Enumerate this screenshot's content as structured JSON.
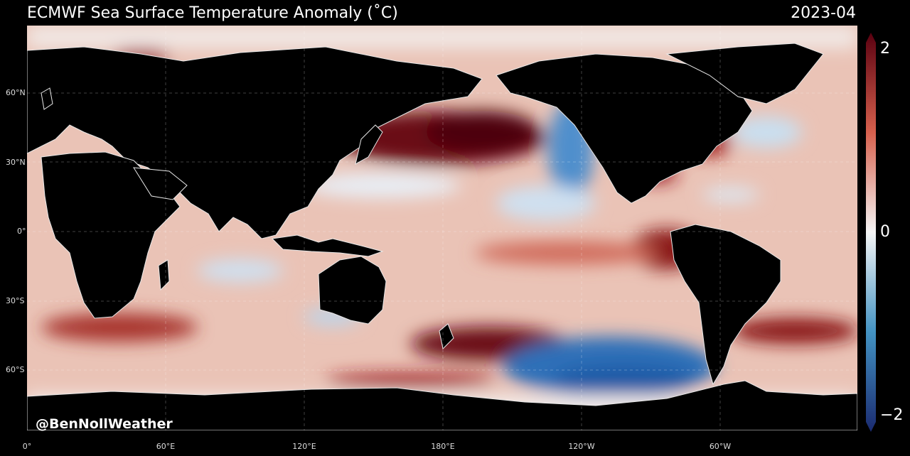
{
  "header": {
    "title": "ECMWF Sea Surface Temperature Anomaly (˚C)",
    "date": "2023-04"
  },
  "credit": "@BenNollWeather",
  "lat_labels": [
    "60°N",
    "30°N",
    "0°",
    "30°S",
    "60°S"
  ],
  "lon_labels": [
    "0°",
    "60°E",
    "120°E",
    "180°E",
    "120°W",
    "60°W"
  ],
  "colorbar": {
    "max_label": "2",
    "mid_label": "0",
    "min_label": "−2",
    "colors": {
      "high": "#5a0010",
      "warm": "#d6604d",
      "neutral": "#f5f5f5",
      "cool": "#4393c3",
      "low": "#1a2a70"
    }
  },
  "map_colors": {
    "land": "#000000",
    "ocean_base": "#eac3b6",
    "border": "#dddddd",
    "ice": "#f7f7f7"
  }
}
